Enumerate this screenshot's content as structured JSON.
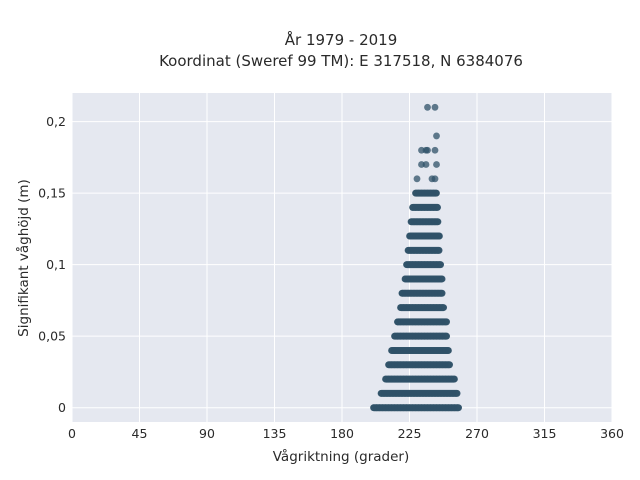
{
  "chart_data": {
    "type": "scatter",
    "title_line1": "År 1979 - 2019",
    "title_line2": "Koordinat (Sweref 99 TM): E 317518, N 6384076",
    "xlabel": "Vågriktning (grader)",
    "ylabel": "Signifikant våghöjd (m)",
    "xlim": [
      0,
      360
    ],
    "ylim": [
      -0.01,
      0.22
    ],
    "x_ticks": [
      0,
      45,
      90,
      135,
      180,
      225,
      270,
      315,
      360
    ],
    "x_tick_labels": [
      "0",
      "45",
      "90",
      "135",
      "180",
      "225",
      "270",
      "315",
      "360"
    ],
    "y_ticks": [
      0,
      0.05,
      0.1,
      0.15,
      0.2
    ],
    "y_tick_labels": [
      "0",
      "0,05",
      "0,1",
      "0,15",
      "0,2"
    ],
    "grid": true,
    "background": "#e5e8f0",
    "marker_color": "#2f5168",
    "bands": [
      {
        "y": 0.0,
        "x_min": 201,
        "x_max": 258
      },
      {
        "y": 0.01,
        "x_min": 206,
        "x_max": 257
      },
      {
        "y": 0.02,
        "x_min": 209,
        "x_max": 255
      },
      {
        "y": 0.03,
        "x_min": 211,
        "x_max": 252
      },
      {
        "y": 0.04,
        "x_min": 213,
        "x_max": 251
      },
      {
        "y": 0.05,
        "x_min": 215,
        "x_max": 250
      },
      {
        "y": 0.06,
        "x_min": 217,
        "x_max": 250
      },
      {
        "y": 0.07,
        "x_min": 219,
        "x_max": 248
      },
      {
        "y": 0.08,
        "x_min": 220,
        "x_max": 247
      },
      {
        "y": 0.09,
        "x_min": 222,
        "x_max": 247
      },
      {
        "y": 0.1,
        "x_min": 223,
        "x_max": 246
      },
      {
        "y": 0.11,
        "x_min": 224,
        "x_max": 245
      },
      {
        "y": 0.12,
        "x_min": 225,
        "x_max": 245
      },
      {
        "y": 0.13,
        "x_min": 226,
        "x_max": 244
      },
      {
        "y": 0.14,
        "x_min": 227,
        "x_max": 244
      },
      {
        "y": 0.15,
        "x_min": 229,
        "x_max": 243
      }
    ],
    "points": [
      {
        "x": 217,
        "y": 0.06
      },
      {
        "x": 215,
        "y": 0.04
      },
      {
        "x": 220,
        "y": 0.08
      },
      {
        "x": 230,
        "y": 0.16
      },
      {
        "x": 233,
        "y": 0.17
      },
      {
        "x": 236,
        "y": 0.17
      },
      {
        "x": 240,
        "y": 0.16
      },
      {
        "x": 242,
        "y": 0.16
      },
      {
        "x": 243,
        "y": 0.17
      },
      {
        "x": 233,
        "y": 0.18
      },
      {
        "x": 236,
        "y": 0.18
      },
      {
        "x": 237,
        "y": 0.18
      },
      {
        "x": 242,
        "y": 0.18
      },
      {
        "x": 243,
        "y": 0.19
      },
      {
        "x": 237,
        "y": 0.21
      },
      {
        "x": 242,
        "y": 0.21
      }
    ]
  }
}
